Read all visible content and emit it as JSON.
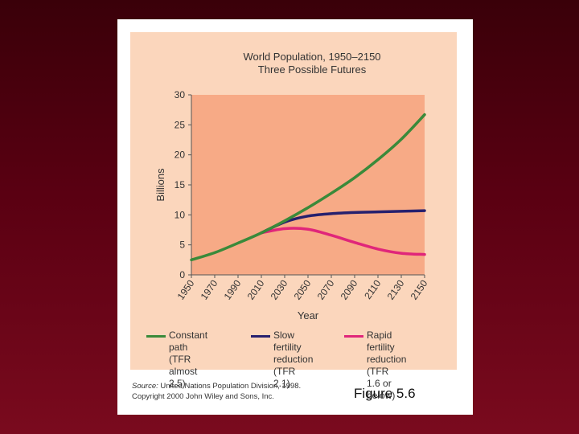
{
  "chart_data": {
    "type": "line",
    "title": "World Population, 1950–2150",
    "subtitle": "Three Possible Futures",
    "xlabel": "Year",
    "ylabel": "Billions",
    "xlim": [
      1950,
      2150
    ],
    "ylim": [
      0,
      30
    ],
    "x_ticks": [
      "1950",
      "1970",
      "1990",
      "2010",
      "2030",
      "2050",
      "2070",
      "2090",
      "2110",
      "2130",
      "2150"
    ],
    "y_ticks": [
      "0",
      "5",
      "10",
      "15",
      "20",
      "25",
      "30"
    ],
    "x": [
      1950,
      1970,
      1990,
      2010,
      2030,
      2050,
      2070,
      2090,
      2110,
      2130,
      2150
    ],
    "series": [
      {
        "name": "Constant path (TFR almost 2.5)",
        "color": "#3a8a3a",
        "values": [
          2.5,
          3.7,
          5.3,
          7.0,
          9.0,
          11.2,
          13.6,
          16.2,
          19.2,
          22.6,
          26.7
        ]
      },
      {
        "name": "Slow fertility reduction (TFR 2.1)",
        "color": "#26206e",
        "values": [
          null,
          null,
          null,
          7.0,
          8.8,
          9.8,
          10.2,
          10.4,
          10.5,
          10.6,
          10.7
        ]
      },
      {
        "name": "Rapid fertility reduction (TFR 1.6 or below)",
        "color": "#e0267a",
        "values": [
          null,
          null,
          null,
          7.0,
          7.7,
          7.6,
          6.6,
          5.4,
          4.3,
          3.6,
          3.4
        ]
      }
    ],
    "legend": [
      {
        "label": "Constant path\n(TFR almost\n2.5)",
        "color": "#3a8a3a"
      },
      {
        "label": "Slow fertility\nreduction\n(TFR 2.1)",
        "color": "#26206e"
      },
      {
        "label": "Rapid fertility\nreduction (TFR\n1.6 or below)",
        "color": "#e0267a"
      }
    ]
  },
  "source": {
    "label": "Source:",
    "text": " United Nations Population Division, 1998.",
    "copyright": "Copyright 2000 John Wiley and Sons, Inc."
  },
  "caption": "Figure 5.6"
}
